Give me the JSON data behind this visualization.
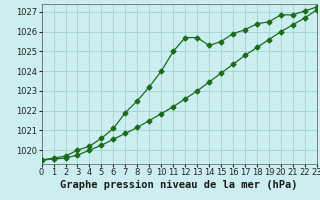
{
  "title": "Graphe pression niveau de la mer (hPa)",
  "background_color": "#cceef0",
  "grid_color": "#99cccc",
  "line_color": "#1a6b1a",
  "x_hours": [
    0,
    1,
    2,
    3,
    4,
    5,
    6,
    7,
    8,
    9,
    10,
    11,
    12,
    13,
    14,
    15,
    16,
    17,
    18,
    19,
    20,
    21,
    22,
    23
  ],
  "line1_y": [
    1019.5,
    1019.6,
    1019.7,
    1020.0,
    1020.2,
    1020.6,
    1021.1,
    1021.9,
    1022.5,
    1023.2,
    1024.0,
    1025.0,
    1025.7,
    1025.7,
    1025.3,
    1025.5,
    1025.9,
    1026.1,
    1026.4,
    1026.5,
    1026.85,
    1026.85,
    1027.05,
    1027.25
  ],
  "line2_y": [
    1019.5,
    1019.55,
    1019.6,
    1019.75,
    1020.0,
    1020.25,
    1020.55,
    1020.85,
    1021.15,
    1021.5,
    1021.85,
    1022.2,
    1022.6,
    1023.0,
    1023.45,
    1023.9,
    1024.35,
    1024.8,
    1025.2,
    1025.6,
    1026.0,
    1026.35,
    1026.7,
    1027.1
  ],
  "ylim": [
    1019.3,
    1027.4
  ],
  "yticks": [
    1020,
    1021,
    1022,
    1023,
    1024,
    1025,
    1026,
    1027
  ],
  "xlim": [
    0,
    23
  ],
  "xticks": [
    0,
    1,
    2,
    3,
    4,
    5,
    6,
    7,
    8,
    9,
    10,
    11,
    12,
    13,
    14,
    15,
    16,
    17,
    18,
    19,
    20,
    21,
    22,
    23
  ],
  "title_fontsize": 7.5,
  "tick_fontsize": 6,
  "marker": "D",
  "marker_size": 2.5,
  "line_width": 0.9
}
